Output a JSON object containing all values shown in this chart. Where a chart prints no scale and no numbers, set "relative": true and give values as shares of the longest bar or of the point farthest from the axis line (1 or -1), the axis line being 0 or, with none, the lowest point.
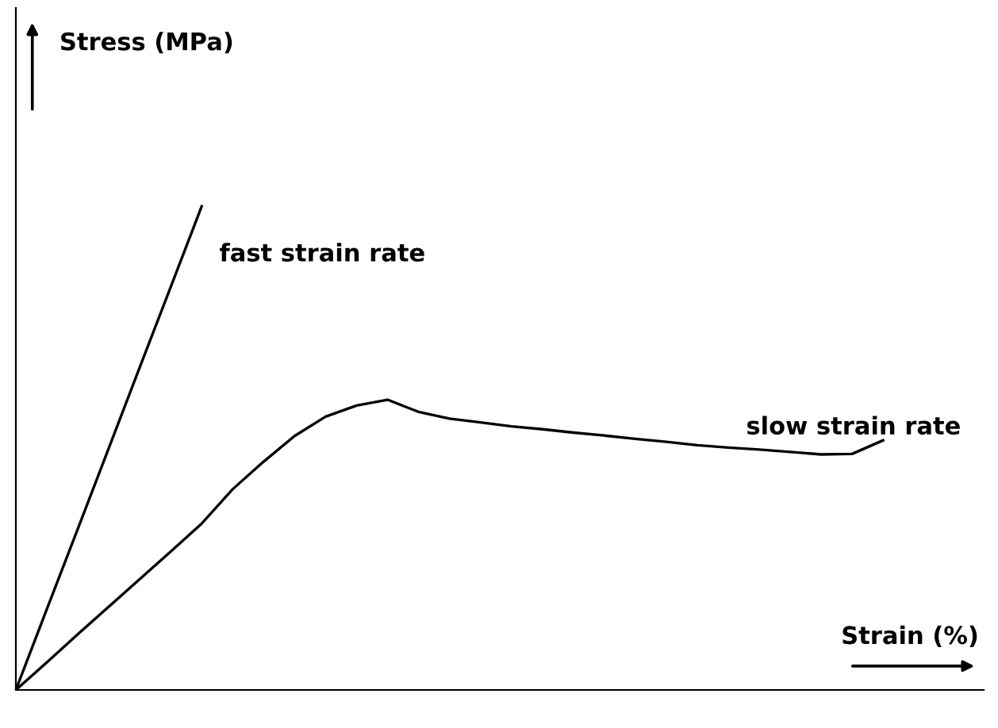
{
  "chart_data": {
    "type": "line",
    "relative": true,
    "xlabel": "Strain (%)",
    "annotations": [
      "Stress (MPa)"
    ],
    "legend": false,
    "marker": "none",
    "line_style": "solid",
    "categories": [
      null,
      null,
      null,
      null,
      null,
      null,
      null,
      null,
      null,
      null,
      null,
      null,
      null,
      null,
      null,
      null,
      null,
      null,
      null,
      null,
      null,
      null,
      null,
      null,
      null,
      null,
      null,
      null,
      null
    ],
    "series": [
      {
        "name": "fast strain rate",
        "color": "#000000",
        "values": [
          0,
          0.167,
          0.333,
          0.5,
          0.667,
          0.833,
          1,
          null,
          null,
          null,
          null,
          null,
          null,
          null,
          null,
          null,
          null,
          null,
          null,
          null,
          null,
          null,
          null,
          null,
          null,
          null,
          null,
          null,
          null
        ]
      },
      {
        "name": "slow strain rate",
        "color": "#000000",
        "values": [
          0,
          0.057,
          0.115,
          0.172,
          0.229,
          0.286,
          0.344,
          0.415,
          0.472,
          0.525,
          0.565,
          0.588,
          0.6,
          0.575,
          0.561,
          0.553,
          0.545,
          0.539,
          0.532,
          0.526,
          0.519,
          0.513,
          0.506,
          0.501,
          0.497,
          0.492,
          0.487,
          0.488,
          0.516
        ]
      }
    ]
  }
}
